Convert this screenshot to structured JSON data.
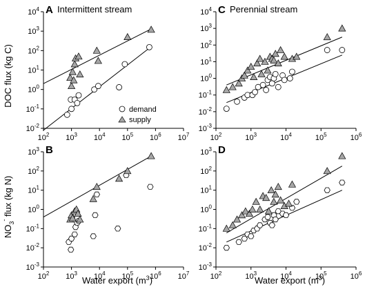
{
  "figure": {
    "ylabel_top": "DOC flux (kg C)",
    "ylabel_bottom_main": "NO",
    "ylabel_bottom_sub": "3",
    "ylabel_bottom_sup": "-",
    "ylabel_bottom_rest": " flux (kg N)",
    "xlabel": "Water export (m",
    "xlabel_sup": "3",
    "xlabel_close": ")"
  },
  "legend": {
    "demand": "demand",
    "supply": "supply"
  },
  "chart_data": [
    {
      "type": "scatter",
      "panel": "A",
      "title": "Intermittent stream",
      "xscale": "log",
      "yscale": "log",
      "xlim": [
        100,
        10000000
      ],
      "ylim": [
        0.01,
        10000
      ],
      "xticks": [
        "10^2",
        "10^3",
        "10^4",
        "10^5",
        "10^6",
        "10^7"
      ],
      "yticks": [
        "10^-2",
        "10^-1",
        "10^0",
        "10^1",
        "10^2",
        "10^3",
        "10^4"
      ],
      "series": [
        {
          "name": "demand",
          "marker": "circle",
          "x": [
            700,
            950,
            1000,
            1300,
            1600,
            1800,
            6500,
            9000,
            50000,
            80000,
            600000
          ],
          "y": [
            0.05,
            0.3,
            0.1,
            0.3,
            0.2,
            0.5,
            1.0,
            1.5,
            1.3,
            20,
            150
          ]
        },
        {
          "name": "supply",
          "marker": "triangle",
          "x": [
            900,
            1000,
            1100,
            1200,
            1300,
            1400,
            1800,
            2000,
            8000,
            9000,
            100000,
            700000
          ],
          "y": [
            4,
            1.5,
            8,
            3,
            20,
            40,
            50,
            6,
            100,
            30,
            500,
            1200
          ]
        }
      ],
      "fits": [
        {
          "series": "demand",
          "x": [
            100,
            700000
          ],
          "y": [
            0.008,
            160
          ]
        },
        {
          "series": "supply",
          "x": [
            100,
            700000
          ],
          "y": [
            2.0,
            1300
          ]
        }
      ]
    },
    {
      "type": "scatter",
      "panel": "B",
      "title": "",
      "xscale": "log",
      "yscale": "log",
      "xlim": [
        100,
        10000000
      ],
      "ylim": [
        0.001,
        1000
      ],
      "xticks": [
        "10^2",
        "10^3",
        "10^4",
        "10^5",
        "10^6",
        "10^7"
      ],
      "yticks": [
        "10^-3",
        "10^-2",
        "10^-1",
        "10^0",
        "10^1",
        "10^2",
        "10^3"
      ],
      "series": [
        {
          "name": "demand",
          "marker": "hexagon",
          "x": [
            800,
            950,
            1000,
            1300,
            1400,
            1600,
            1800,
            6000,
            7000,
            8000,
            45000,
            90000,
            650000
          ],
          "y": [
            0.02,
            0.008,
            0.03,
            0.05,
            0.12,
            0.2,
            0.25,
            0.04,
            0.5,
            6,
            0.1,
            60,
            15
          ]
        },
        {
          "name": "supply",
          "marker": "triangle",
          "x": [
            900,
            1000,
            1100,
            1300,
            1500,
            1700,
            2000,
            6000,
            8000,
            50000,
            100000,
            700000
          ],
          "y": [
            0.3,
            0.5,
            0.35,
            0.8,
            1.0,
            0.6,
            0.3,
            3.5,
            15,
            40,
            100,
            600
          ]
        }
      ],
      "fits": [
        {
          "series": "supply",
          "x": [
            100,
            700000
          ],
          "y": [
            0.4,
            600
          ]
        }
      ]
    },
    {
      "type": "scatter",
      "panel": "C",
      "title": "Perennial stream",
      "xscale": "log",
      "yscale": "log",
      "xlim": [
        100,
        1000000
      ],
      "ylim": [
        0.001,
        10000
      ],
      "xticks": [
        "10^2",
        "10^3",
        "10^4",
        "10^5",
        "10^6"
      ],
      "yticks": [
        "10^-3",
        "10^-2",
        "10^-1",
        "10^0",
        "10^1",
        "10^2",
        "10^3",
        "10^4"
      ],
      "series": [
        {
          "name": "demand",
          "marker": "circle",
          "x": [
            200,
            400,
            650,
            800,
            1100,
            1300,
            1600,
            2200,
            2700,
            3000,
            3500,
            4000,
            4500,
            5000,
            6000,
            8000,
            9000,
            13000,
            15000,
            150000,
            400000
          ],
          "y": [
            0.015,
            0.04,
            0.07,
            0.1,
            0.1,
            0.15,
            0.3,
            0.4,
            0.2,
            0.8,
            1.2,
            0.5,
            1.0,
            1.8,
            0.3,
            1.5,
            0.8,
            1.0,
            2.5,
            50,
            50
          ]
        },
        {
          "name": "supply",
          "marker": "triangle",
          "x": [
            200,
            300,
            450,
            550,
            650,
            800,
            1000,
            1200,
            1500,
            1800,
            2000,
            2500,
            3000,
            3500,
            4000,
            4500,
            5000,
            6000,
            7000,
            9000,
            15000,
            20000,
            150000,
            400000
          ],
          "y": [
            0.2,
            0.3,
            0.5,
            1.0,
            1.5,
            3,
            5,
            1.2,
            8,
            15,
            1.8,
            10,
            3,
            20,
            15,
            12,
            30,
            8,
            50,
            20,
            15,
            20,
            300,
            1000
          ]
        }
      ],
      "fits": [
        {
          "series": "demand",
          "x": [
            200,
            400000
          ],
          "y": [
            0.035,
            25
          ]
        },
        {
          "series": "supply",
          "x": [
            200,
            400000
          ],
          "y": [
            0.4,
            300
          ]
        }
      ]
    },
    {
      "type": "scatter",
      "panel": "D",
      "title": "",
      "xscale": "log",
      "yscale": "log",
      "xlim": [
        100,
        1000000
      ],
      "ylim": [
        0.001,
        1000
      ],
      "xticks": [
        "10^2",
        "10^3",
        "10^4",
        "10^5",
        "10^6"
      ],
      "yticks": [
        "10^-3",
        "10^-2",
        "10^-1",
        "10^0",
        "10^1",
        "10^2",
        "10^3"
      ],
      "series": [
        {
          "name": "demand",
          "marker": "hexagon",
          "x": [
            200,
            450,
            650,
            800,
            1000,
            1200,
            1500,
            1800,
            2500,
            3000,
            3500,
            4000,
            4500,
            5000,
            6000,
            8000,
            10000,
            15000,
            20000,
            150000,
            400000
          ],
          "y": [
            0.01,
            0.02,
            0.03,
            0.05,
            0.04,
            0.08,
            0.1,
            0.15,
            0.3,
            0.4,
            0.2,
            0.15,
            0.5,
            0.3,
            0.8,
            0.6,
            0.5,
            1.2,
            2.5,
            10,
            25
          ]
        },
        {
          "name": "supply",
          "marker": "triangle",
          "x": [
            200,
            300,
            400,
            550,
            700,
            900,
            1100,
            1400,
            1800,
            2200,
            2700,
            3200,
            3800,
            4500,
            5000,
            6000,
            7000,
            9000,
            12000,
            15000,
            150000,
            400000
          ],
          "y": [
            0.1,
            0.15,
            0.3,
            0.5,
            0.8,
            0.6,
            1.0,
            2.5,
            1.0,
            5,
            4,
            0.8,
            10,
            2.5,
            6,
            15,
            3,
            1.5,
            2,
            20,
            100,
            600
          ]
        }
      ],
      "fits": [
        {
          "series": "demand",
          "x": [
            200,
            400000
          ],
          "y": [
            0.02,
            10
          ]
        },
        {
          "series": "supply",
          "x": [
            200,
            400000
          ],
          "y": [
            0.06,
            180
          ]
        }
      ]
    }
  ]
}
